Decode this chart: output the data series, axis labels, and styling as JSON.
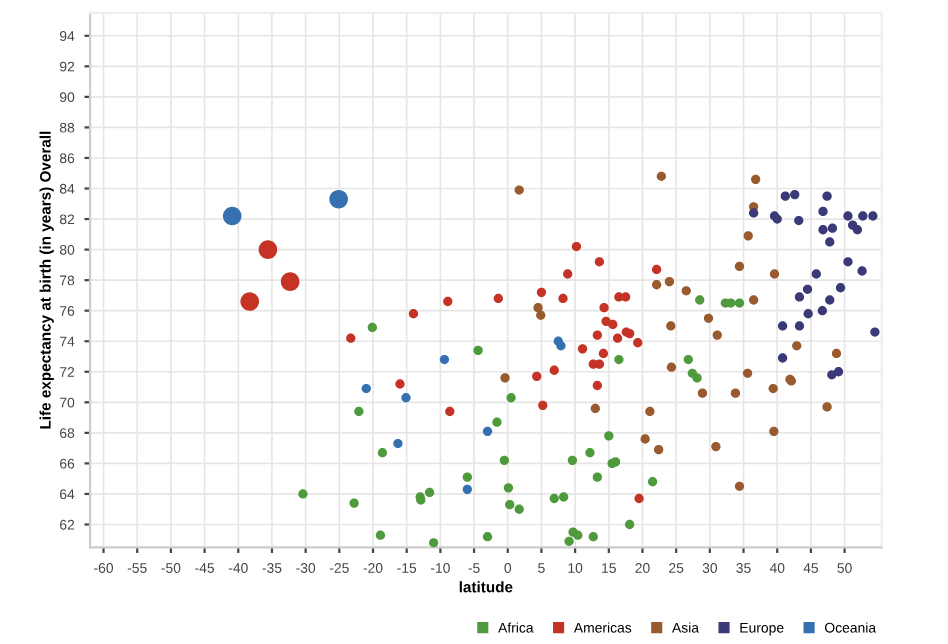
{
  "chart_data": {
    "type": "bubble",
    "xlabel": "latitude",
    "ylabel": "Life expectancy at birth (in years) Overall",
    "xlim": [
      -62,
      55.5
    ],
    "ylim": [
      60.5,
      95.5
    ],
    "xticks": [
      -60,
      -55,
      -50,
      -45,
      -40,
      -35,
      -30,
      -25,
      -20,
      -15,
      -10,
      -5,
      0,
      5,
      10,
      15,
      20,
      25,
      30,
      35,
      40,
      45,
      50
    ],
    "yticks": [
      62,
      64,
      66,
      68,
      70,
      72,
      74,
      76,
      78,
      80,
      82,
      84,
      86,
      88,
      90,
      92,
      94
    ],
    "grid": true,
    "legend": "bottom right",
    "marker": "circle",
    "series": [
      {
        "name": "Africa",
        "color": "#4f9a3c",
        "x": [
          -20.1,
          -22.1,
          -18.6,
          -6.0,
          -30.4,
          -22.8,
          -13.0,
          -12.9,
          -11.6,
          -18.9,
          -11.0,
          -4.4,
          0.5,
          -1.6,
          15.0,
          -0.5,
          12.2,
          9.6,
          15.5,
          13.3,
          0.1,
          6.9,
          8.3,
          0.3,
          1.7,
          -3.0,
          9.7,
          10.4,
          9.1,
          12.7,
          18.1,
          28.5,
          32.3,
          33.1,
          34.4,
          16.5,
          26.8,
          27.4,
          28.1,
          16.0,
          21.5
        ],
        "values": [
          74.9,
          69.4,
          66.7,
          65.1,
          64.0,
          63.4,
          63.8,
          63.6,
          64.1,
          61.3,
          60.8,
          73.4,
          70.3,
          68.7,
          67.8,
          66.2,
          66.7,
          66.2,
          66.0,
          65.1,
          64.4,
          63.7,
          63.8,
          63.3,
          63.0,
          61.2,
          61.5,
          61.3,
          60.9,
          61.2,
          62.0,
          76.7,
          76.5,
          76.5,
          76.5,
          72.8,
          72.8,
          71.9,
          71.6,
          66.1,
          64.8
        ],
        "sizes": [
          0.25,
          0.25,
          0.25,
          0.25,
          0.25,
          0.25,
          0.25,
          0.25,
          0.25,
          0.25,
          0.25,
          0.25,
          0.25,
          0.25,
          0.25,
          0.25,
          0.25,
          0.25,
          0.25,
          0.25,
          0.25,
          0.25,
          0.25,
          0.25,
          0.25,
          0.25,
          0.25,
          0.25,
          0.25,
          0.25,
          0.25,
          0.25,
          0.25,
          0.25,
          0.25,
          0.25,
          0.25,
          0.25,
          0.25,
          0.25,
          0.25
        ]
      },
      {
        "name": "Americas",
        "color": "#c43325",
        "x": [
          -35.6,
          -32.3,
          -38.3,
          -8.9,
          -14.0,
          -23.3,
          -16.0,
          -8.6,
          10.2,
          13.6,
          8.9,
          5.0,
          -1.4,
          8.2,
          14.3,
          14.6,
          15.6,
          13.3,
          11.1,
          14.2,
          12.7,
          13.6,
          6.9,
          4.3,
          13.3,
          5.2,
          22.1,
          16.5,
          17.5,
          16.3,
          17.6,
          18.1,
          19.3,
          19.5
        ],
        "values": [
          80.0,
          77.9,
          76.6,
          76.6,
          75.8,
          74.2,
          71.2,
          69.4,
          80.2,
          79.2,
          78.4,
          77.2,
          76.8,
          76.8,
          76.2,
          75.3,
          75.1,
          74.4,
          73.5,
          73.2,
          72.5,
          72.5,
          72.1,
          71.7,
          71.1,
          69.8,
          78.7,
          76.9,
          76.9,
          74.2,
          74.6,
          74.5,
          73.9,
          63.7
        ],
        "sizes": [
          1,
          1,
          1,
          0.25,
          0.25,
          0.25,
          0.25,
          0.25,
          0.25,
          0.25,
          0.25,
          0.25,
          0.25,
          0.25,
          0.25,
          0.25,
          0.25,
          0.25,
          0.25,
          0.25,
          0.25,
          0.25,
          0.25,
          0.25,
          0.25,
          0.25,
          0.25,
          0.25,
          0.25,
          0.25,
          0.25,
          0.25,
          0.25,
          0.25
        ]
      },
      {
        "name": "Asia",
        "color": "#9a5a2f",
        "x": [
          1.7,
          4.5,
          4.9,
          -0.4,
          13.0,
          22.8,
          36.8,
          36.5,
          35.7,
          34.4,
          39.6,
          22.1,
          24.0,
          26.5,
          36.5,
          29.8,
          31.1,
          24.2,
          35.6,
          24.3,
          28.9,
          33.8,
          39.4,
          41.9,
          42.1,
          42.9,
          48.8,
          47.4,
          21.1,
          20.4,
          22.4,
          30.9,
          39.5,
          34.4
        ],
        "values": [
          83.9,
          76.2,
          75.7,
          71.6,
          69.6,
          84.8,
          84.6,
          82.8,
          80.9,
          78.9,
          78.4,
          77.7,
          77.9,
          77.3,
          76.7,
          75.5,
          74.4,
          75.0,
          71.9,
          72.3,
          70.6,
          70.6,
          70.9,
          71.5,
          71.4,
          73.7,
          73.2,
          69.7,
          69.4,
          67.6,
          66.9,
          67.1,
          68.1,
          64.5
        ],
        "sizes": [
          0.25,
          0.25,
          0.25,
          0.25,
          0.25,
          0.25,
          0.25,
          0.25,
          0.25,
          0.25,
          0.25,
          0.25,
          0.25,
          0.25,
          0.25,
          0.25,
          0.25,
          0.25,
          0.25,
          0.25,
          0.25,
          0.25,
          0.25,
          0.25,
          0.25,
          0.25,
          0.25,
          0.25,
          0.25,
          0.25,
          0.25,
          0.25,
          0.25,
          0.25
        ]
      },
      {
        "name": "Europe",
        "color": "#3b3a78",
        "x": [
          36.5,
          41.2,
          42.6,
          47.4,
          39.6,
          40.0,
          43.2,
          46.8,
          46.8,
          48.2,
          47.8,
          50.5,
          51.2,
          51.9,
          52.7,
          54.2,
          50.5,
          52.6,
          45.8,
          44.5,
          49.4,
          43.3,
          47.8,
          44.6,
          46.7,
          40.8,
          43.3,
          54.5,
          40.8,
          48.1,
          49.1
        ],
        "values": [
          82.4,
          83.5,
          83.6,
          83.5,
          82.2,
          82.0,
          81.9,
          82.5,
          81.3,
          81.4,
          80.5,
          82.2,
          81.6,
          81.3,
          82.2,
          82.2,
          79.2,
          78.6,
          78.4,
          77.4,
          77.5,
          76.9,
          76.7,
          75.8,
          76.0,
          75.0,
          75.0,
          74.6,
          72.9,
          71.8,
          72.0
        ],
        "sizes": [
          0.25,
          0.25,
          0.25,
          0.25,
          0.25,
          0.25,
          0.25,
          0.25,
          0.25,
          0.25,
          0.25,
          0.25,
          0.25,
          0.25,
          0.25,
          0.25,
          0.25,
          0.25,
          0.25,
          0.25,
          0.25,
          0.25,
          0.25,
          0.25,
          0.25,
          0.25,
          0.25,
          0.25,
          0.25,
          0.25,
          0.25
        ]
      },
      {
        "name": "Oceania",
        "color": "#3571b0",
        "x": [
          -40.9,
          -25.1,
          -9.4,
          -21.0,
          -15.1,
          -16.3,
          -6.0,
          7.5,
          7.9,
          -3.0
        ],
        "values": [
          82.2,
          83.3,
          72.8,
          70.9,
          70.3,
          67.3,
          64.3,
          74.0,
          73.7,
          68.1
        ],
        "sizes": [
          1,
          1,
          0.25,
          0.25,
          0.25,
          0.25,
          0.25,
          0.25,
          0.25,
          0.25
        ]
      }
    ]
  }
}
